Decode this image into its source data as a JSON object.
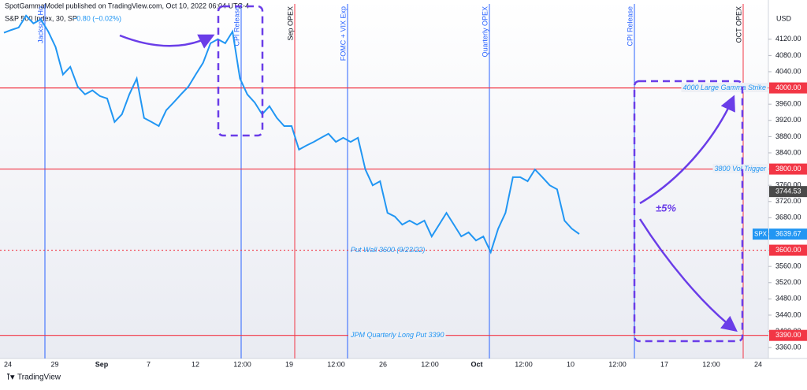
{
  "header": {
    "publisher": "SpotGammaModel published on TradingView.com, Oct 10, 2022 06:04 UTC-4",
    "symbol": "S&P 500 Index, 30, SP",
    "change": "−0.80 (−0.02%)"
  },
  "chart_data": {
    "type": "line",
    "currency": "USD",
    "symbol_tag": "SPX",
    "ylim": [
      3337,
      4207
    ],
    "yticks": [
      {
        "value": 3360,
        "label": "3360.00"
      },
      {
        "value": 3400,
        "label": "3400.00"
      },
      {
        "value": 3440,
        "label": "3440.00"
      },
      {
        "value": 3480,
        "label": "3480.00"
      },
      {
        "value": 3520,
        "label": "3520.00"
      },
      {
        "value": 3560,
        "label": "3560.00"
      },
      {
        "value": 3600,
        "label": "3600.00"
      },
      {
        "value": 3640,
        "label": "3640.00"
      },
      {
        "value": 3680,
        "label": "3680.00"
      },
      {
        "value": 3720,
        "label": "3720.00"
      },
      {
        "value": 3760,
        "label": "3760.00"
      },
      {
        "value": 3800,
        "label": "3800.00"
      },
      {
        "value": 3840,
        "label": "3840.00"
      },
      {
        "value": 3880,
        "label": "3880.00"
      },
      {
        "value": 3920,
        "label": "3920.00"
      },
      {
        "value": 3960,
        "label": "3960.00"
      },
      {
        "value": 4000,
        "label": "4000.00"
      },
      {
        "value": 4040,
        "label": "4040.00"
      },
      {
        "value": 4080,
        "label": "4080.00"
      },
      {
        "value": 4120,
        "label": "4120.00"
      }
    ],
    "x_axis_labels": [
      "24",
      "29",
      "Sep",
      "7",
      "12",
      "12:00",
      "19",
      "12:00",
      "26",
      "12:00",
      "Oct",
      "12:00",
      "10",
      "12:00",
      "17",
      "12:00",
      "24"
    ],
    "series": [
      {
        "color": "#2196f3",
        "values": [
          4136,
          4143,
          4149,
          4178,
          4159,
          4169,
          4139,
          4101,
          4033,
          4052,
          4003,
          3984,
          3994,
          3980,
          3974,
          3916,
          3935,
          3984,
          4023,
          3926,
          3916,
          3906,
          3945,
          3964,
          3984,
          4003,
          4033,
          4062,
          4110,
          4120,
          4110,
          4139,
          4023,
          3984,
          3964,
          3935,
          3955,
          3926,
          3906,
          3906,
          3848,
          3858,
          3867,
          3877,
          3887,
          3867,
          3877,
          3867,
          3877,
          3799,
          3760,
          3770,
          3692,
          3683,
          3663,
          3673,
          3663,
          3673,
          3634,
          3663,
          3692,
          3663,
          3634,
          3644,
          3624,
          3634,
          3595,
          3653,
          3692,
          3780,
          3780,
          3770,
          3799,
          3780,
          3760,
          3750,
          3673,
          3653,
          3640
        ]
      }
    ],
    "last_value": {
      "value": 3639.67,
      "label": "3639.67"
    },
    "marker_value": {
      "value": 3744.53,
      "label": "3744.53"
    },
    "levels": [
      {
        "value": 4000,
        "label": "4000.00",
        "text": "4000 Large Gamma Strike",
        "style": "solid",
        "color": "#f23645"
      },
      {
        "value": 3800,
        "label": "3800.00",
        "text": "3800 Vol Trigger",
        "style": "solid",
        "color": "#f23645"
      },
      {
        "value": 3600,
        "label": "3600.00",
        "text": "Put Wall 3600 (9/23/22)",
        "style": "dotted",
        "color": "#f23645"
      },
      {
        "value": 3390,
        "label": "3390.00",
        "text": "JPM Quarterly Long Put 3390",
        "style": "solid",
        "color": "#f23645"
      }
    ],
    "events": [
      {
        "label": "Jackson Ho",
        "color": "#2962ff"
      },
      {
        "label": "CPI Release",
        "color": "#2962ff"
      },
      {
        "label": "Sep OPEX",
        "color": "#f23645"
      },
      {
        "label": "FOMC + VIX Exp",
        "color": "#2962ff"
      },
      {
        "label": "Quarterly OPEX",
        "color": "#2962ff"
      },
      {
        "label": "CPI Release",
        "color": "#2962ff"
      },
      {
        "label": "OCT OPEX",
        "color": "#f23645"
      }
    ],
    "annotation": "±5%"
  },
  "footer": {
    "brand": "TradingView"
  }
}
